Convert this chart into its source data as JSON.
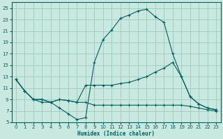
{
  "xlabel": "Humidex (Indice chaleur)",
  "background_color": "#c8e8e0",
  "grid_color": "#a0c8bc",
  "line_color": "#006060",
  "xlim": [
    -0.5,
    23.5
  ],
  "ylim": [
    5,
    26
  ],
  "xticks": [
    0,
    1,
    2,
    3,
    4,
    5,
    6,
    7,
    8,
    9,
    10,
    11,
    12,
    13,
    14,
    15,
    16,
    17,
    18,
    19,
    20,
    21,
    22,
    23
  ],
  "yticks": [
    5,
    7,
    9,
    11,
    13,
    15,
    17,
    19,
    21,
    23,
    25
  ],
  "line1_x": [
    0,
    1,
    2,
    3,
    4,
    5,
    6,
    7,
    8,
    9,
    10,
    11,
    12,
    13,
    14,
    15,
    16,
    17,
    18,
    19,
    20,
    21,
    22,
    23
  ],
  "line1_y": [
    12.5,
    10.5,
    9.0,
    8.5,
    8.5,
    7.5,
    6.5,
    5.5,
    5.8,
    15.5,
    19.5,
    21.2,
    23.2,
    23.8,
    24.5,
    24.8,
    23.5,
    22.5,
    17.0,
    13.0,
    9.5,
    8.2,
    7.5,
    7.2
  ],
  "line2_x": [
    0,
    1,
    2,
    3,
    4,
    5,
    6,
    7,
    8,
    9,
    10,
    11,
    12,
    13,
    14,
    15,
    16,
    17,
    18,
    19,
    20,
    21,
    22,
    23
  ],
  "line2_y": [
    12.5,
    10.5,
    9.0,
    9.0,
    8.5,
    9.0,
    8.8,
    8.5,
    11.5,
    11.5,
    11.5,
    11.5,
    11.8,
    12.0,
    12.5,
    13.0,
    13.8,
    14.5,
    15.5,
    13.0,
    9.5,
    8.2,
    7.5,
    7.2
  ],
  "line3_x": [
    0,
    1,
    2,
    3,
    4,
    5,
    6,
    7,
    8,
    9,
    10,
    11,
    12,
    13,
    14,
    15,
    16,
    17,
    18,
    19,
    20,
    21,
    22,
    23
  ],
  "line3_y": [
    12.5,
    10.5,
    9.0,
    9.0,
    8.5,
    9.0,
    8.8,
    8.5,
    8.5,
    8.0,
    8.0,
    8.0,
    8.0,
    8.0,
    8.0,
    8.0,
    8.0,
    8.0,
    8.0,
    8.0,
    7.8,
    7.5,
    7.2,
    7.0
  ]
}
